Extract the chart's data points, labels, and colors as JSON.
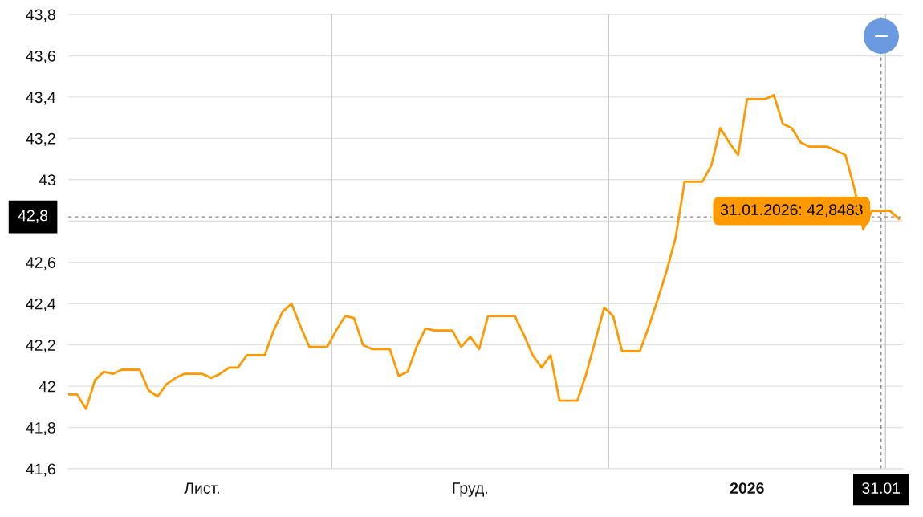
{
  "chart_data": {
    "type": "line",
    "categories": [
      null,
      null,
      null,
      null,
      null,
      null,
      null,
      null,
      null,
      null,
      null,
      null,
      null,
      null,
      null,
      "Лист.",
      null,
      null,
      null,
      null,
      null,
      null,
      null,
      null,
      null,
      null,
      null,
      null,
      null,
      null,
      null,
      null,
      null,
      null,
      null,
      null,
      null,
      null,
      null,
      null,
      null,
      null,
      null,
      null,
      null,
      "Груд.",
      null,
      null,
      null,
      null,
      null,
      null,
      null,
      null,
      null,
      null,
      null,
      null,
      null,
      null,
      null,
      null,
      null,
      null,
      null,
      null,
      null,
      null,
      null,
      null,
      null,
      null,
      null,
      null,
      null,
      null,
      "2026",
      null,
      null,
      null,
      null,
      null,
      null,
      null,
      null,
      null,
      null,
      null,
      null,
      null,
      null,
      "31.01",
      null,
      null
    ],
    "series": [
      {
        "color": "#ff9900",
        "values": [
          41.96,
          41.96,
          41.89,
          42.03,
          42.07,
          42.06,
          42.08,
          42.08,
          42.08,
          41.98,
          41.95,
          42.01,
          42.04,
          42.06,
          42.06,
          42.06,
          42.04,
          42.06,
          42.09,
          42.09,
          42.15,
          42.15,
          42.15,
          42.27,
          42.36,
          42.4,
          42.29,
          42.19,
          42.19,
          42.19,
          42.27,
          42.34,
          42.33,
          42.2,
          42.18,
          42.18,
          42.18,
          42.05,
          42.07,
          42.19,
          42.28,
          42.27,
          42.27,
          42.27,
          42.19,
          42.24,
          42.18,
          42.34,
          42.34,
          42.34,
          42.34,
          42.25,
          42.15,
          42.09,
          42.15,
          41.93,
          41.93,
          41.93,
          42.06,
          42.22,
          42.38,
          42.34,
          42.17,
          42.17,
          42.17,
          42.29,
          42.42,
          42.56,
          42.72,
          42.99,
          42.99,
          42.99,
          43.07,
          43.25,
          43.18,
          43.12,
          43.39,
          43.39,
          43.39,
          43.41,
          43.27,
          43.25,
          43.18,
          43.16,
          43.16,
          43.16,
          43.14,
          43.12,
          42.96,
          42.76,
          42.85,
          42.8483,
          42.85,
          42.81
        ]
      }
    ],
    "ylim": [
      41.6,
      43.8
    ],
    "yticks": [
      {
        "value": 41.6,
        "label": "41,6"
      },
      {
        "value": 41.8,
        "label": "41,8"
      },
      42,
      {
        "value": 42.2,
        "label": "42,2"
      },
      {
        "value": 42.4,
        "label": "42,4"
      },
      {
        "value": 42.6,
        "label": "42,6"
      },
      {
        "value": 42.8,
        "label": null
      },
      43,
      {
        "value": 43.2,
        "label": "43,2"
      },
      {
        "value": 43.4,
        "label": "43,4"
      },
      {
        "value": 43.6,
        "label": "43,6"
      },
      {
        "value": 43.8,
        "label": "43,8"
      }
    ],
    "grid": "y",
    "ref_lines": [
      {
        "axis": "x",
        "value": "31.01",
        "color": "#888888",
        "line_style": "dashed"
      },
      {
        "axis": "y",
        "value": 42.82,
        "label": "42,8",
        "color": "#888888",
        "line_style": "dashed"
      }
    ],
    "annotations": [
      {
        "text": "31.01.2026: 42,8483",
        "x": "31.01",
        "y": 42.8483
      }
    ]
  }
}
